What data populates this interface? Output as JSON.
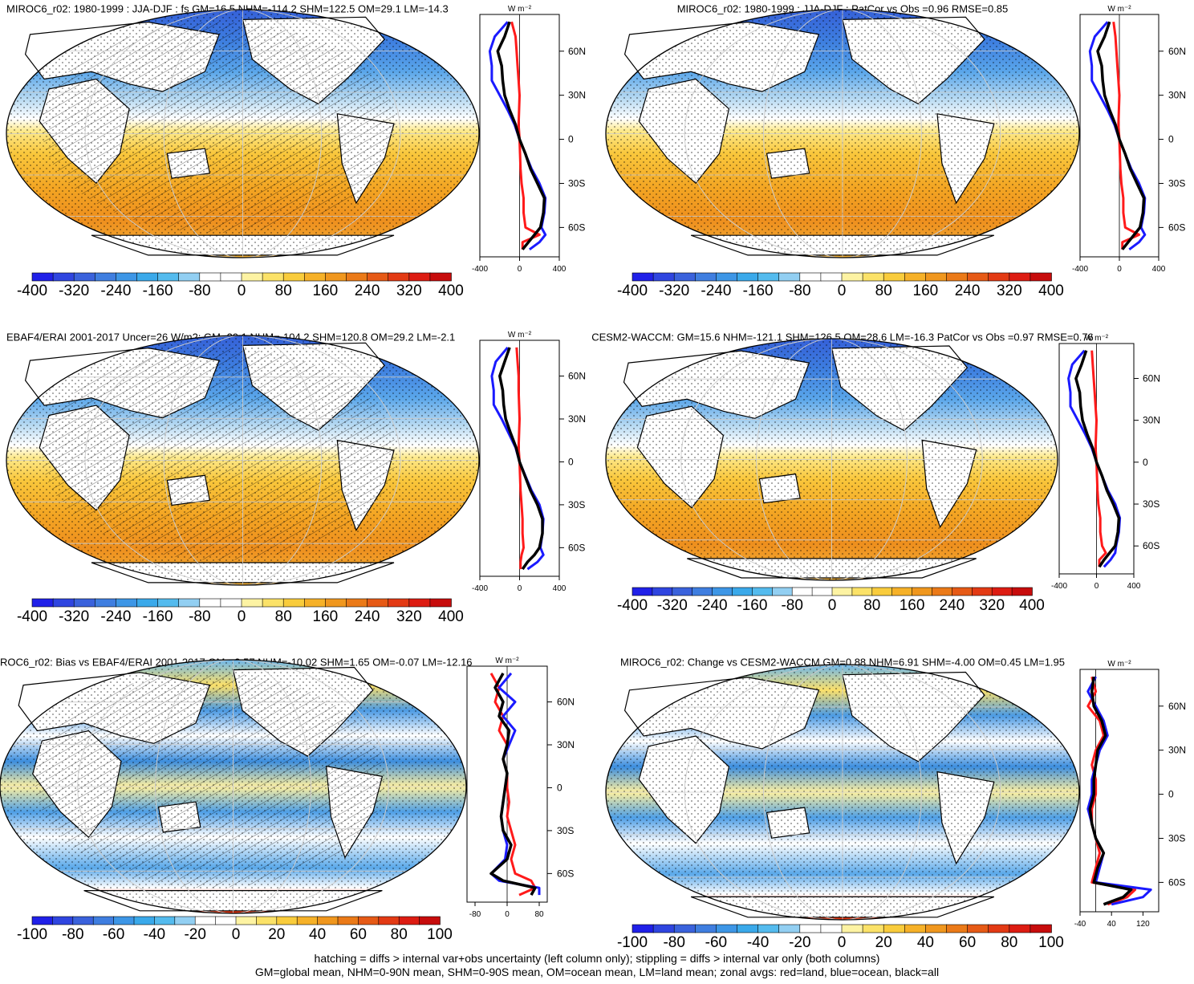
{
  "colors": {
    "land": "#ffffff",
    "scale_standard": [
      "#2020e8",
      "#2f45e0",
      "#3a62dc",
      "#3f7ee0",
      "#3d96e6",
      "#3aa9ea",
      "#54bbee",
      "#92cff2",
      "#ffffff",
      "#ffffff",
      "#fdf3a3",
      "#fbe268",
      "#f9cc3c",
      "#f6b128",
      "#f0971e",
      "#eb7a18",
      "#e65a16",
      "#e33a14",
      "#dd1c12",
      "#c70c0c"
    ],
    "zonal_land": "#ff1a1a",
    "zonal_ocean": "#1a1aff",
    "zonal_all": "#000000"
  },
  "panels": [
    {
      "id": "top-left",
      "title": "MIROC6_r02: 1980-1999 : JJA-DJF : fs GM=16.5 NHM=-114.2 SHM=122.5 OM=29.1 LM=-14.3",
      "colorbar_labels": [
        "-400",
        "-320",
        "-240",
        "-160",
        "-80",
        "0",
        "80",
        "160",
        "240",
        "320",
        "400"
      ],
      "zonal_units": "W m⁻²",
      "lat_labels": [
        "60N",
        "30N",
        "0",
        "30S",
        "60S"
      ],
      "x_ticks": [
        "-400",
        "0",
        "400"
      ]
    },
    {
      "id": "top-right",
      "title": "MIROC6_r02: 1980-1999 : JJA-DJF : PatCor vs Obs =0.96 RMSE=0.85",
      "colorbar_labels": [
        "-400",
        "-320",
        "-240",
        "-160",
        "-80",
        "0",
        "80",
        "160",
        "240",
        "320",
        "400"
      ],
      "zonal_units": "W m⁻²",
      "lat_labels": [
        "60N",
        "30N",
        "0",
        "30S",
        "60S"
      ],
      "x_ticks": [
        "-400",
        "0",
        "400"
      ]
    },
    {
      "id": "middle-left",
      "title": "EBAF4/ERAI 2001-2017 Uncer=26 W/m2: GM=20.1 NHM=-104.2 SHM=120.8 OM=29.2 LM=-2.1",
      "colorbar_labels": [
        "-400",
        "-320",
        "-240",
        "-160",
        "-80",
        "0",
        "80",
        "160",
        "240",
        "320",
        "400"
      ],
      "zonal_units": "W m⁻²",
      "lat_labels": [
        "60N",
        "30N",
        "0",
        "30S",
        "60S"
      ],
      "x_ticks": [
        "-400",
        "0",
        "400"
      ]
    },
    {
      "id": "middle-right",
      "title": "CESM2-WACCM: GM=15.6 NHM=-121.1 SHM=126.5 OM=28.6 LM=-16.3 PatCor vs Obs =0.97 RMSE=0.76",
      "colorbar_labels": [
        "-400",
        "-320",
        "-240",
        "-160",
        "-80",
        "0",
        "80",
        "160",
        "240",
        "320",
        "400"
      ],
      "zonal_units": "W m⁻²",
      "lat_labels": [
        "60N",
        "30N",
        "0",
        "30S",
        "60S"
      ],
      "x_ticks": [
        "-400",
        "0",
        "400"
      ]
    },
    {
      "id": "bottom-left",
      "title": "ROC6_r02: Bias vs EBAF4/ERAI 2001-2017 GM=-3.57 NHM=-10.02 SHM=1.65 OM=-0.07 LM=-12.16",
      "colorbar_labels": [
        "-100",
        "-80",
        "-60",
        "-40",
        "-20",
        "0",
        "20",
        "40",
        "60",
        "80",
        "100"
      ],
      "zonal_units": "W m⁻²",
      "lat_labels": [
        "60N",
        "30N",
        "0",
        "30S",
        "60S"
      ],
      "x_ticks": [
        "-80",
        "0",
        "80"
      ]
    },
    {
      "id": "bottom-right",
      "title": "MIROC6_r02: Change vs CESM2-WACCM GM=0.88 NHM=6.91 SHM=-4.00 OM=0.45 LM=1.95",
      "colorbar_labels": [
        "-100",
        "-80",
        "-60",
        "-40",
        "-20",
        "0",
        "20",
        "40",
        "60",
        "80",
        "100"
      ],
      "zonal_units": "W m⁻²",
      "lat_labels": [
        "60N",
        "30N",
        "0",
        "30S",
        "60S"
      ],
      "x_ticks": [
        "-40",
        "40",
        "120"
      ]
    }
  ],
  "footer": {
    "line1": "hatching = diffs > internal var+obs uncertainty (left column only); stippling = diffs > internal var only (both columns)",
    "line2": "GM=global mean, NHM=0-90N mean, SHM=0-90S mean, OM=ocean mean, LM=land mean; zonal avgs: red=land, blue=ocean, black=all"
  },
  "chart_data": [
    {
      "type": "heatmap",
      "title": "MIROC6_r02: 1980-1999 : JJA-DJF : fs GM=16.5 NHM=-114.2 SHM=122.5 OM=29.1 LM=-14.3",
      "colorbar_range": [
        -400,
        400
      ],
      "colorbar_ticks": [
        -400,
        -320,
        -240,
        -160,
        -80,
        0,
        80,
        160,
        240,
        320,
        400
      ],
      "zonal_profile": {
        "xlim": [
          -400,
          400
        ],
        "xticks": [
          -400,
          0,
          400
        ],
        "units": "W m-2",
        "lat_ticks": [
          60,
          30,
          0,
          -30,
          -60
        ],
        "lat": [
          80,
          70,
          60,
          50,
          40,
          30,
          20,
          10,
          0,
          -10,
          -20,
          -30,
          -40,
          -50,
          -60,
          -65,
          -70,
          -75
        ],
        "series": [
          {
            "name": "land",
            "values": [
              -80,
              -40,
              -30,
              -20,
              -10,
              0,
              -5,
              -10,
              0,
              5,
              10,
              20,
              40,
              40,
              60,
              200,
              30,
              30
            ]
          },
          {
            "name": "ocean",
            "values": [
              -120,
              -250,
              -300,
              -280,
              -280,
              -200,
              -120,
              -50,
              0,
              60,
              120,
              200,
              260,
              250,
              220,
              260,
              200,
              100
            ]
          },
          {
            "name": "all",
            "values": [
              -100,
              -150,
              -220,
              -180,
              -170,
              -150,
              -100,
              -40,
              0,
              60,
              110,
              180,
              250,
              240,
              210,
              150,
              90,
              30
            ]
          }
        ]
      }
    },
    {
      "type": "heatmap",
      "title": "MIROC6_r02: 1980-1999 : JJA-DJF : PatCor vs Obs =0.96 RMSE=0.85",
      "colorbar_range": [
        -400,
        400
      ],
      "colorbar_ticks": [
        -400,
        -320,
        -240,
        -160,
        -80,
        0,
        80,
        160,
        240,
        320,
        400
      ],
      "zonal_profile": {
        "xlim": [
          -400,
          400
        ],
        "xticks": [
          -400,
          0,
          400
        ],
        "units": "W m-2",
        "lat_ticks": [
          60,
          30,
          0,
          -30,
          -60
        ],
        "lat": [
          80,
          70,
          60,
          50,
          40,
          30,
          20,
          10,
          0,
          -10,
          -20,
          -30,
          -40,
          -50,
          -60,
          -65,
          -70,
          -75
        ],
        "series": [
          {
            "name": "land",
            "values": [
              -60,
              -40,
              -30,
              -20,
              -10,
              0,
              -5,
              -10,
              0,
              5,
              10,
              20,
              40,
              40,
              60,
              200,
              30,
              30
            ]
          },
          {
            "name": "ocean",
            "values": [
              -120,
              -250,
              -300,
              -280,
              -280,
              -200,
              -120,
              -50,
              0,
              60,
              120,
              200,
              260,
              250,
              220,
              260,
              200,
              100
            ]
          },
          {
            "name": "all",
            "values": [
              -100,
              -150,
              -220,
              -180,
              -170,
              -150,
              -100,
              -40,
              0,
              60,
              110,
              180,
              250,
              240,
              210,
              150,
              90,
              30
            ]
          }
        ]
      }
    },
    {
      "type": "heatmap",
      "title": "EBAF4/ERAI 2001-2017 Uncer=26 W/m2: GM=20.1 NHM=-104.2 SHM=120.8 OM=29.2 LM=-2.1",
      "colorbar_range": [
        -400,
        400
      ],
      "colorbar_ticks": [
        -400,
        -320,
        -240,
        -160,
        -80,
        0,
        80,
        160,
        240,
        320,
        400
      ],
      "zonal_profile": {
        "xlim": [
          -400,
          400
        ],
        "xticks": [
          -400,
          0,
          400
        ],
        "units": "W m-2",
        "lat_ticks": [
          60,
          30,
          0,
          -30,
          -60
        ],
        "lat": [
          80,
          70,
          60,
          50,
          40,
          30,
          20,
          10,
          0,
          -10,
          -20,
          -30,
          -40,
          -50,
          -60,
          -65,
          -70,
          -75
        ],
        "series": [
          {
            "name": "land",
            "values": [
              -30,
              -20,
              -10,
              -10,
              -5,
              0,
              -5,
              -10,
              0,
              5,
              10,
              20,
              30,
              30,
              40,
              20,
              10,
              10
            ]
          },
          {
            "name": "ocean",
            "values": [
              -120,
              -240,
              -280,
              -260,
              -260,
              -180,
              -110,
              -40,
              0,
              60,
              120,
              200,
              240,
              230,
              210,
              240,
              180,
              80
            ]
          },
          {
            "name": "all",
            "values": [
              -100,
              -150,
              -200,
              -170,
              -160,
              -140,
              -90,
              -35,
              0,
              55,
              110,
              180,
              230,
              230,
              200,
              150,
              80,
              30
            ]
          }
        ]
      }
    },
    {
      "type": "heatmap",
      "title": "CESM2-WACCM: GM=15.6 NHM=-121.1 SHM=126.5 OM=28.6 LM=-16.3 PatCor vs Obs =0.97 RMSE=0.76",
      "colorbar_range": [
        -400,
        400
      ],
      "colorbar_ticks": [
        -400,
        -320,
        -240,
        -160,
        -80,
        0,
        80,
        160,
        240,
        320,
        400
      ],
      "zonal_profile": {
        "xlim": [
          -400,
          400
        ],
        "xticks": [
          -400,
          0,
          400
        ],
        "units": "W m-2",
        "lat_ticks": [
          60,
          30,
          0,
          -30,
          -60
        ],
        "lat": [
          80,
          70,
          60,
          50,
          40,
          30,
          20,
          10,
          0,
          -10,
          -20,
          -30,
          -40,
          -50,
          -60,
          -65,
          -70,
          -75
        ],
        "series": [
          {
            "name": "land",
            "values": [
              -50,
              -40,
              -30,
              -20,
              -10,
              0,
              -5,
              -10,
              0,
              5,
              10,
              20,
              40,
              40,
              60,
              100,
              30,
              30
            ]
          },
          {
            "name": "ocean",
            "values": [
              -130,
              -260,
              -300,
              -280,
              -280,
              -200,
              -120,
              -50,
              0,
              60,
              120,
              200,
              250,
              240,
              210,
              200,
              150,
              80
            ]
          },
          {
            "name": "all",
            "values": [
              -110,
              -160,
              -220,
              -180,
              -170,
              -150,
              -100,
              -40,
              0,
              60,
              110,
              180,
              240,
              230,
              200,
              140,
              80,
              30
            ]
          }
        ]
      }
    },
    {
      "type": "heatmap",
      "title": "ROC6_r02: Bias vs EBAF4/ERAI 2001-2017 GM=-3.57 NHM=-10.02 SHM=1.65 OM=-0.07 LM=-12.16",
      "colorbar_range": [
        -100,
        100
      ],
      "colorbar_ticks": [
        -100,
        -80,
        -60,
        -40,
        -20,
        0,
        20,
        40,
        60,
        80,
        100
      ],
      "zonal_profile": {
        "xlim": [
          -100,
          100
        ],
        "xticks": [
          -80,
          0,
          80
        ],
        "units": "W m-2",
        "lat_ticks": [
          60,
          30,
          0,
          -30,
          -60
        ],
        "lat": [
          80,
          70,
          60,
          50,
          40,
          30,
          20,
          10,
          0,
          -10,
          -20,
          -30,
          -40,
          -50,
          -60,
          -65,
          -70,
          -75
        ],
        "series": [
          {
            "name": "land",
            "values": [
              -40,
              -20,
              -30,
              -10,
              -20,
              0,
              -10,
              0,
              0,
              5,
              0,
              10,
              20,
              10,
              20,
              60,
              70,
              30
            ]
          },
          {
            "name": "ocean",
            "values": [
              10,
              -20,
              20,
              -10,
              20,
              5,
              -10,
              0,
              -5,
              -10,
              -15,
              -10,
              0,
              -5,
              -40,
              -20,
              80,
              80
            ]
          },
          {
            "name": "all",
            "values": [
              -10,
              -30,
              -10,
              -20,
              5,
              0,
              -10,
              0,
              -5,
              -10,
              -15,
              -10,
              10,
              0,
              -40,
              -10,
              70,
              60
            ]
          }
        ]
      }
    },
    {
      "type": "heatmap",
      "title": "MIROC6_r02: Change vs CESM2-WACCM GM=0.88 NHM=6.91 SHM=-4.00 OM=0.45 LM=1.95",
      "colorbar_range": [
        -100,
        100
      ],
      "colorbar_ticks": [
        -100,
        -80,
        -60,
        -40,
        -20,
        0,
        20,
        40,
        60,
        80,
        100
      ],
      "zonal_profile": {
        "xlim": [
          -40,
          160
        ],
        "xticks": [
          -40,
          40,
          120
        ],
        "units": "W m-2",
        "lat_ticks": [
          60,
          30,
          0,
          -30,
          -60
        ],
        "lat": [
          80,
          70,
          60,
          50,
          40,
          30,
          20,
          10,
          0,
          -10,
          -20,
          -30,
          -40,
          -50,
          -60,
          -65,
          -70,
          -75
        ],
        "series": [
          {
            "name": "land",
            "values": [
              -10,
              0,
              -20,
              10,
              20,
              0,
              -10,
              0,
              0,
              -10,
              -10,
              0,
              10,
              0,
              -10,
              100,
              80,
              30
            ]
          },
          {
            "name": "ocean",
            "values": [
              0,
              -20,
              0,
              20,
              30,
              10,
              0,
              -10,
              -10,
              -20,
              -10,
              0,
              20,
              10,
              0,
              140,
              120,
              40
            ]
          },
          {
            "name": "all",
            "values": [
              -5,
              -10,
              -5,
              15,
              25,
              5,
              0,
              -5,
              -5,
              -15,
              -10,
              0,
              20,
              5,
              -5,
              90,
              70,
              20
            ]
          }
        ]
      }
    }
  ]
}
